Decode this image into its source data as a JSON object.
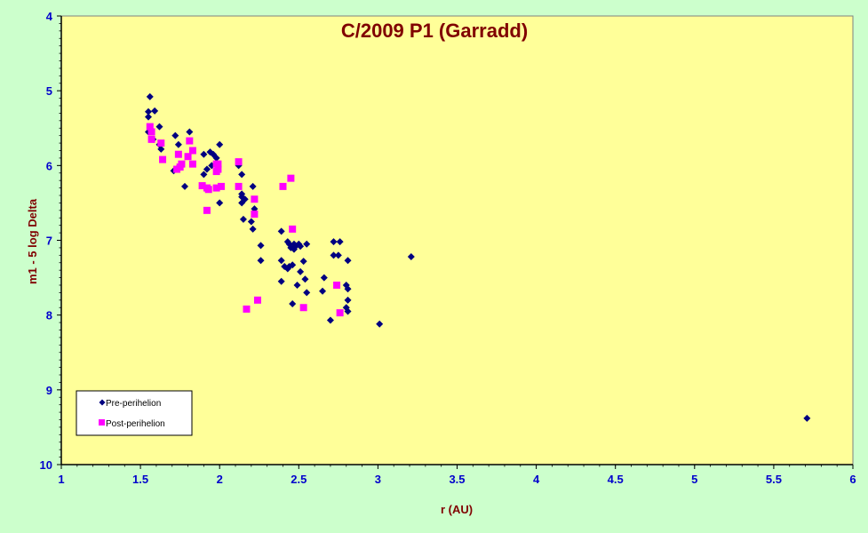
{
  "chart_data": {
    "type": "scatter",
    "title": "C/2009 P1 (Garradd)",
    "xlabel": "r (AU)",
    "ylabel": "m1 - 5 log Delta",
    "xlim": [
      1,
      6
    ],
    "ylim": [
      4,
      10
    ],
    "y_inverted": true,
    "x_ticks": [
      "1",
      "1.5",
      "2",
      "2.5",
      "3",
      "3.5",
      "4",
      "4.5",
      "5",
      "5.5",
      "6"
    ],
    "y_ticks": [
      "4",
      "5",
      "6",
      "7",
      "8",
      "9",
      "10"
    ],
    "grid": false,
    "legend_position": "bottom-left",
    "plot_background": "#ffff99",
    "series": [
      {
        "name": "Pre-perihelion",
        "marker": "diamond",
        "color": "#000080",
        "points": [
          [
            1.56,
            5.08
          ],
          [
            1.55,
            5.28
          ],
          [
            1.59,
            5.27
          ],
          [
            1.55,
            5.35
          ],
          [
            1.55,
            5.55
          ],
          [
            1.62,
            5.48
          ],
          [
            1.58,
            5.65
          ],
          [
            1.62,
            5.72
          ],
          [
            1.63,
            5.78
          ],
          [
            1.72,
            5.6
          ],
          [
            1.81,
            5.55
          ],
          [
            1.74,
            5.72
          ],
          [
            1.9,
            5.85
          ],
          [
            1.94,
            5.82
          ],
          [
            2.0,
            5.72
          ],
          [
            1.96,
            5.85
          ],
          [
            1.98,
            5.9
          ],
          [
            1.95,
            6.0
          ],
          [
            1.71,
            6.07
          ],
          [
            1.74,
            6.02
          ],
          [
            1.92,
            6.05
          ],
          [
            1.9,
            6.12
          ],
          [
            2.12,
            6.0
          ],
          [
            2.14,
            6.12
          ],
          [
            1.78,
            6.28
          ],
          [
            2.21,
            6.28
          ],
          [
            2.14,
            6.38
          ],
          [
            2.14,
            6.42
          ],
          [
            2.16,
            6.45
          ],
          [
            2.14,
            6.5
          ],
          [
            2.0,
            6.5
          ],
          [
            2.22,
            6.58
          ],
          [
            2.15,
            6.72
          ],
          [
            2.2,
            6.75
          ],
          [
            2.21,
            6.85
          ],
          [
            2.39,
            6.88
          ],
          [
            2.43,
            7.02
          ],
          [
            2.44,
            7.05
          ],
          [
            2.47,
            7.05
          ],
          [
            2.48,
            7.08
          ],
          [
            2.45,
            7.1
          ],
          [
            2.5,
            7.05
          ],
          [
            2.51,
            7.08
          ],
          [
            2.55,
            7.05
          ],
          [
            2.47,
            7.12
          ],
          [
            2.26,
            7.07
          ],
          [
            2.72,
            7.02
          ],
          [
            2.76,
            7.02
          ],
          [
            2.72,
            7.2
          ],
          [
            2.75,
            7.2
          ],
          [
            2.81,
            7.27
          ],
          [
            3.21,
            7.22
          ],
          [
            2.26,
            7.27
          ],
          [
            2.39,
            7.27
          ],
          [
            2.41,
            7.35
          ],
          [
            2.44,
            7.35
          ],
          [
            2.46,
            7.33
          ],
          [
            2.53,
            7.28
          ],
          [
            2.43,
            7.38
          ],
          [
            2.51,
            7.42
          ],
          [
            2.54,
            7.52
          ],
          [
            2.39,
            7.55
          ],
          [
            2.49,
            7.6
          ],
          [
            2.66,
            7.5
          ],
          [
            2.8,
            7.6
          ],
          [
            2.81,
            7.65
          ],
          [
            2.55,
            7.7
          ],
          [
            2.65,
            7.68
          ],
          [
            2.81,
            7.8
          ],
          [
            2.46,
            7.85
          ],
          [
            2.8,
            7.9
          ],
          [
            2.81,
            7.95
          ],
          [
            2.7,
            8.07
          ],
          [
            3.01,
            8.12
          ],
          [
            5.71,
            9.38
          ]
        ]
      },
      {
        "name": "Post-perihelion",
        "marker": "square",
        "color": "#ff00ff",
        "points": [
          [
            1.56,
            5.48
          ],
          [
            1.57,
            5.55
          ],
          [
            1.57,
            5.65
          ],
          [
            1.63,
            5.7
          ],
          [
            1.81,
            5.67
          ],
          [
            1.74,
            5.85
          ],
          [
            1.8,
            5.88
          ],
          [
            1.83,
            5.8
          ],
          [
            1.64,
            5.92
          ],
          [
            1.76,
            5.98
          ],
          [
            1.73,
            6.05
          ],
          [
            1.75,
            6.02
          ],
          [
            1.83,
            5.98
          ],
          [
            1.98,
            5.98
          ],
          [
            1.99,
            5.98
          ],
          [
            1.98,
            6.08
          ],
          [
            1.99,
            6.05
          ],
          [
            2.12,
            5.95
          ],
          [
            1.89,
            6.27
          ],
          [
            1.92,
            6.3
          ],
          [
            1.93,
            6.32
          ],
          [
            1.98,
            6.3
          ],
          [
            2.01,
            6.28
          ],
          [
            2.12,
            6.28
          ],
          [
            2.4,
            6.28
          ],
          [
            2.45,
            6.17
          ],
          [
            2.22,
            6.45
          ],
          [
            1.92,
            6.6
          ],
          [
            2.22,
            6.65
          ],
          [
            2.46,
            6.85
          ],
          [
            2.74,
            7.6
          ],
          [
            2.24,
            7.8
          ],
          [
            2.17,
            7.92
          ],
          [
            2.53,
            7.9
          ],
          [
            2.76,
            7.97
          ]
        ]
      }
    ]
  }
}
